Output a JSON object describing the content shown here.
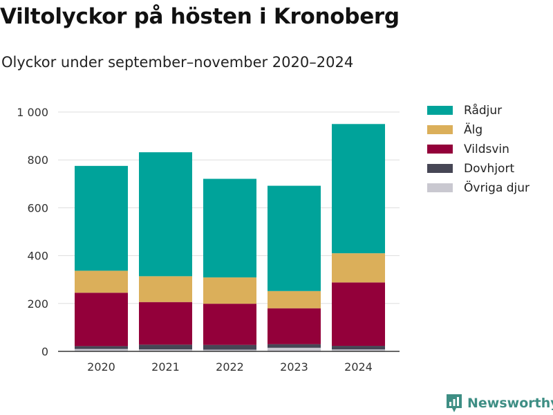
{
  "title": "Viltolyckor på hösten i Kronoberg",
  "subtitle": "Olyckor under september–november 2020–2024",
  "brand": {
    "name": "Newsworthy",
    "icon": "newsworthy-logo-icon",
    "color": "#3e8e84"
  },
  "chart_data": {
    "type": "bar",
    "stacked": true,
    "title": "Viltolyckor på hösten i Kronoberg",
    "subtitle": "Olyckor under september–november 2020–2024",
    "xlabel": "",
    "ylabel": "",
    "ylim": [
      0,
      1000
    ],
    "yticks": [
      0,
      200,
      400,
      600,
      800,
      1000
    ],
    "ytick_labels": [
      "0",
      "200",
      "400",
      "600",
      "800",
      "1 000"
    ],
    "grid": true,
    "legend_position": "right",
    "categories": [
      "2020",
      "2021",
      "2022",
      "2023",
      "2024"
    ],
    "series": [
      {
        "name": "Övriga djur",
        "color": "#c9c8d0",
        "values": [
          10,
          8,
          7,
          15,
          8
        ]
      },
      {
        "name": "Dovhjort",
        "color": "#464655",
        "values": [
          12,
          20,
          20,
          15,
          15
        ]
      },
      {
        "name": "Vildsvin",
        "color": "#93003a",
        "values": [
          223,
          178,
          172,
          150,
          265
        ]
      },
      {
        "name": "Älg",
        "color": "#dbaf5a",
        "values": [
          92,
          108,
          110,
          72,
          122
        ]
      },
      {
        "name": "Rådjur",
        "color": "#00a39a",
        "values": [
          438,
          518,
          412,
          440,
          540
        ]
      }
    ],
    "legend_order": [
      "Rådjur",
      "Älg",
      "Vildsvin",
      "Dovhjort",
      "Övriga djur"
    ]
  }
}
